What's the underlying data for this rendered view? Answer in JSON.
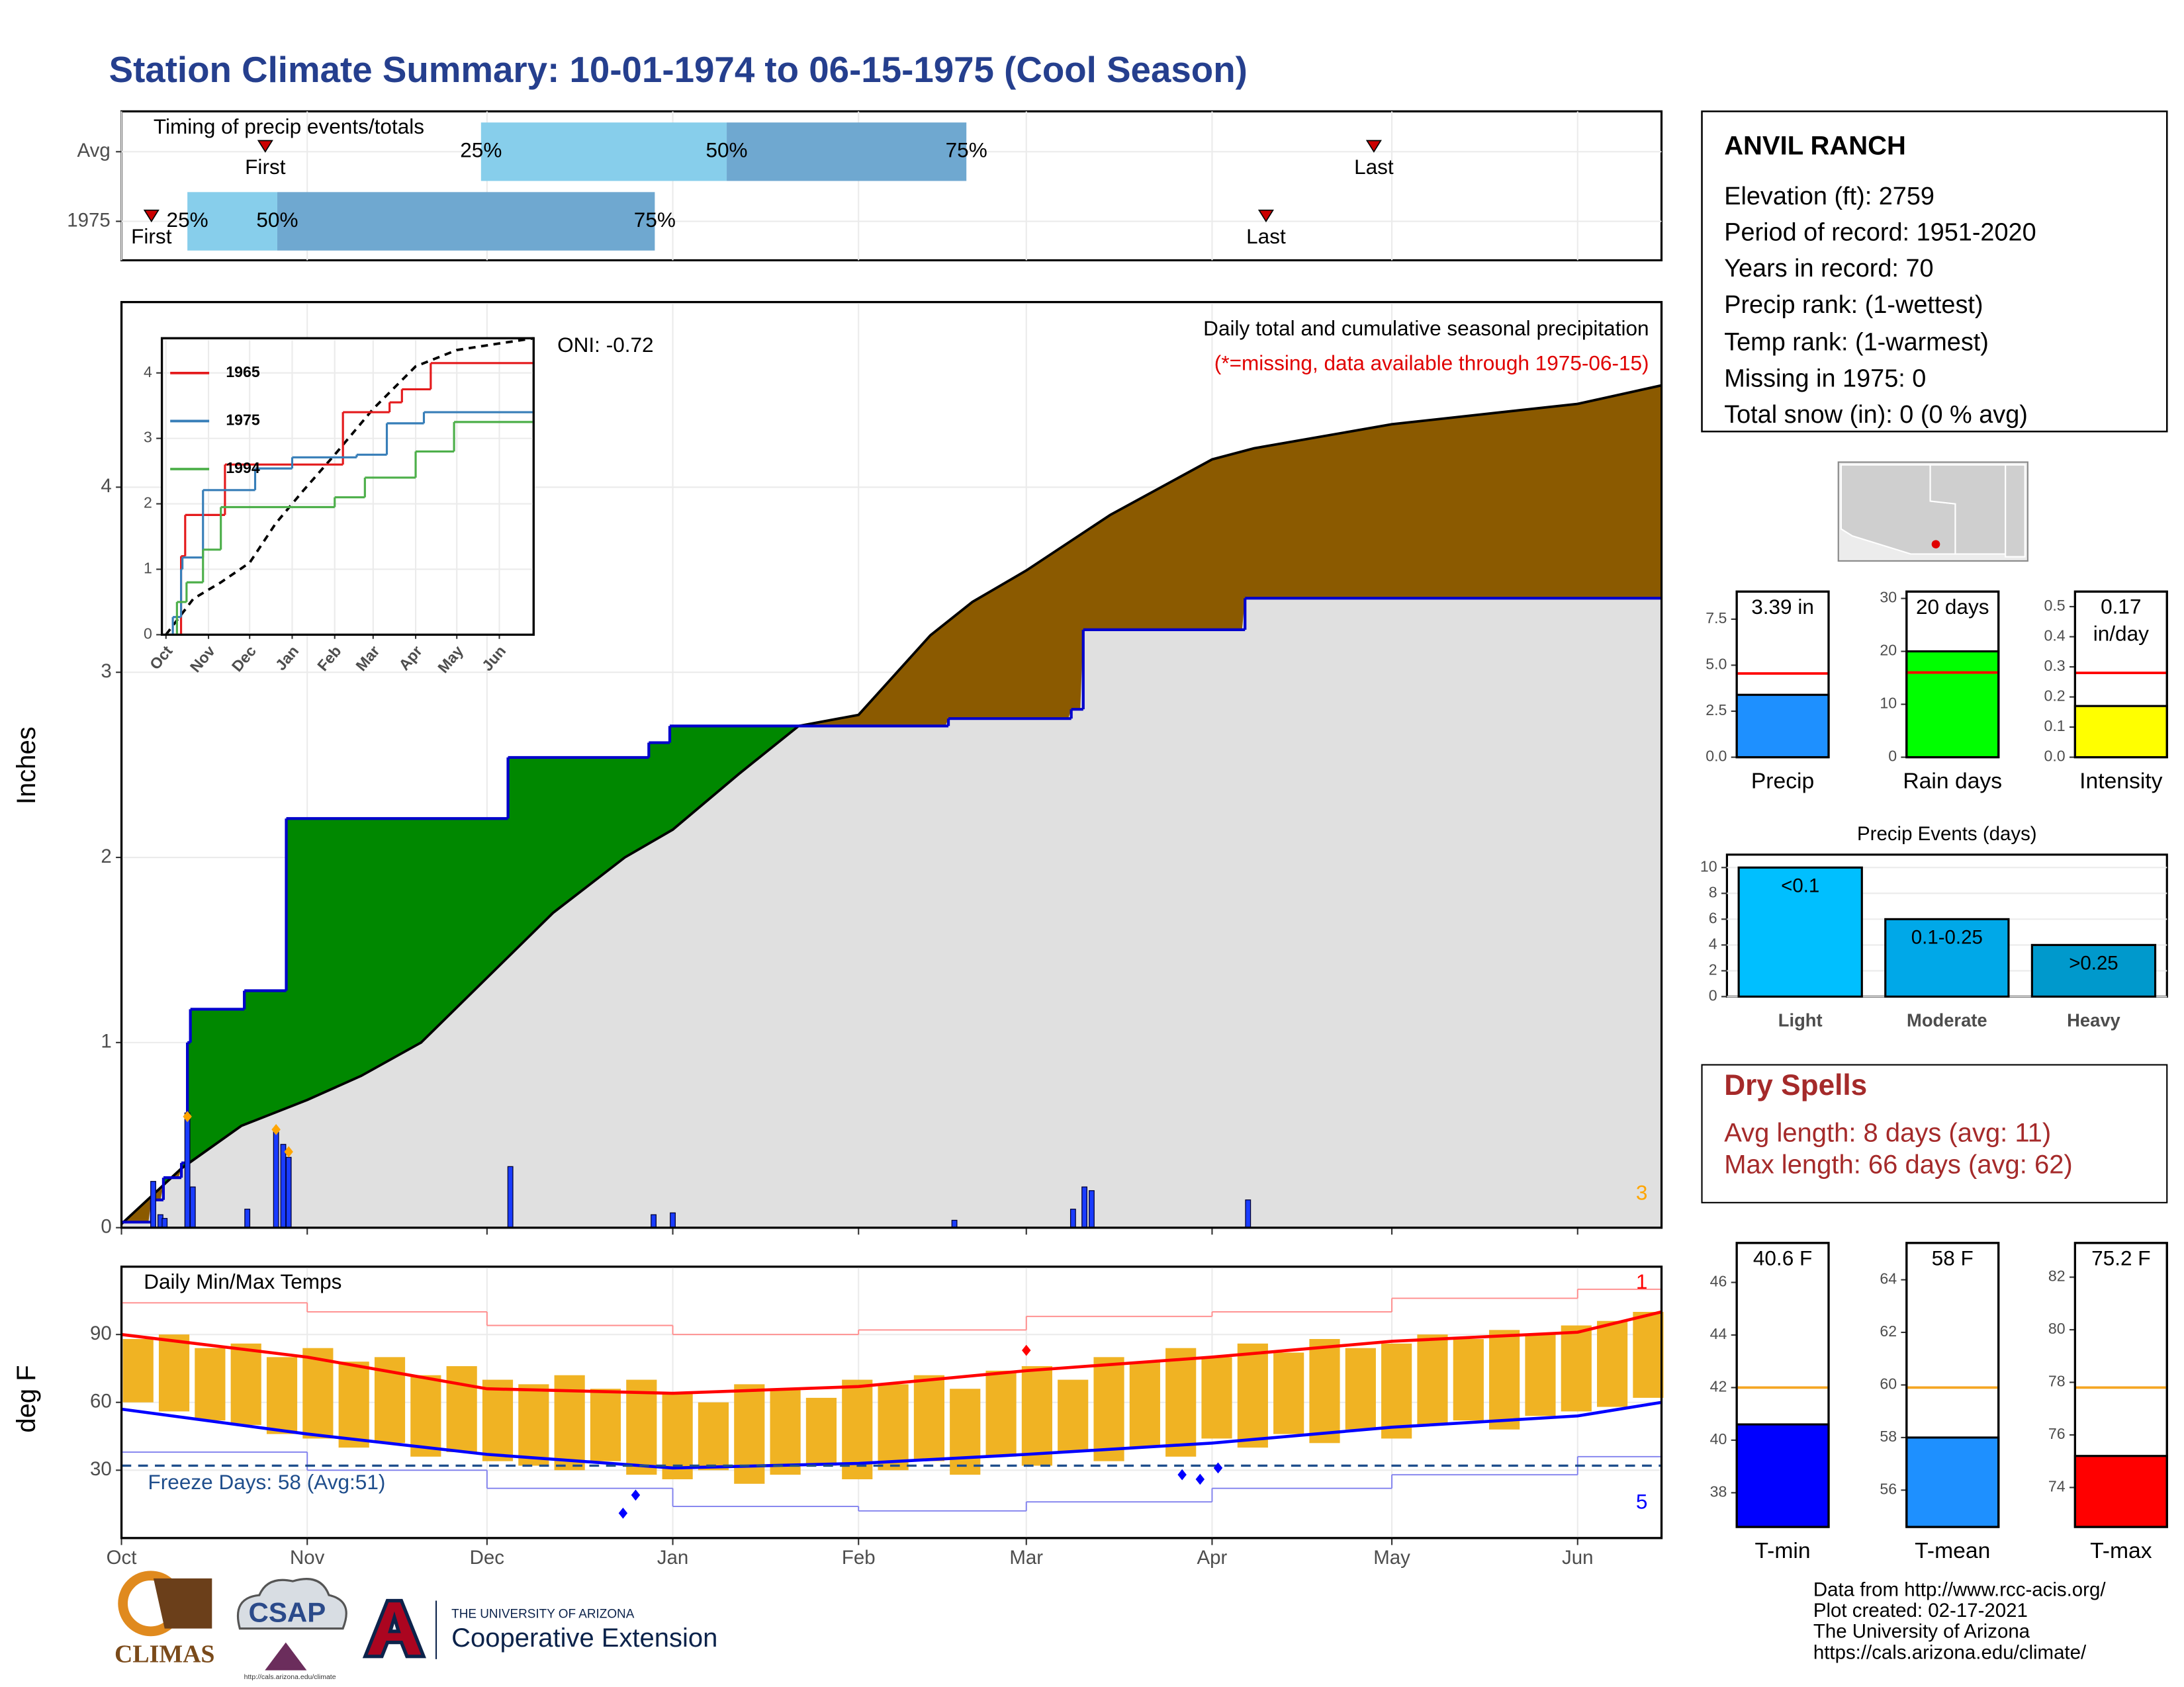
{
  "header": {
    "title": "Station Climate Summary: 10-01-1974 to 06-15-1975 (Cool Season)"
  },
  "station": {
    "name": "ANVIL RANCH",
    "lines": [
      "Elevation (ft): 2759",
      "Period of record: 1951-2020",
      "Years in record: 70",
      "Precip rank:  (1-wettest)",
      "Temp rank:  (1-warmest)",
      "Missing in 1975: 0",
      "Total snow (in): 0 (0 % avg)"
    ]
  },
  "dry_spells": {
    "title": "Dry Spells",
    "lines": [
      "Avg length: 8 days (avg: 11)",
      "Max length: 66 days (avg: 62)"
    ]
  },
  "footer": {
    "lines": [
      "Data from http://www.rcc-acis.org/",
      "Plot created: 02-17-2021",
      "The University of Arizona",
      "https://cals.arizona.edu/climate/"
    ]
  },
  "logos": {
    "climas": "CLIMAS",
    "csap": "CSAP",
    "csap_url": "http://cals.arizona.edu/climate",
    "university": "THE UNIVERSITY OF ARIZONA",
    "extension": "Cooperative Extension"
  },
  "chart_data": [
    {
      "type": "timing",
      "title": "Timing of precip events/totals",
      "categories": [
        "Avg",
        "1975"
      ],
      "labels": [
        "First",
        "25%",
        "50%",
        "75%",
        "Last"
      ],
      "rows": [
        [
          24,
          60,
          101,
          141,
          209
        ],
        [
          5,
          11,
          26,
          89,
          191
        ]
      ],
      "xlim": [
        0,
        257
      ],
      "xgrid": [
        0,
        31,
        61,
        92,
        123,
        151,
        182,
        212,
        243
      ],
      "colors": [
        "#87ceeb",
        "#6fa8d0"
      ],
      "marker_color": "#cc0000"
    },
    {
      "type": "cumulative",
      "ylabel": "Inches",
      "title": "Daily total and cumulative seasonal precipitation",
      "subtitle": "(*=missing, data available through 1975-06-15)",
      "annotation": "ONI: -0.72",
      "corner_note": "3",
      "corner_note_color": "#ffa500",
      "xlim": [
        0,
        257
      ],
      "xticks": [
        0,
        31,
        61,
        92,
        123,
        151,
        182,
        212,
        243
      ],
      "ylim": [
        0,
        5
      ],
      "yticks": [
        0,
        1,
        2,
        3,
        4
      ],
      "grid": true,
      "fill_colors": {
        "above": "#008800",
        "below": "#8b5a00",
        "base": "#e0e0e0"
      },
      "observed": {
        "x": [
          0,
          5,
          7,
          10,
          11,
          11.5,
          20.5,
          27.5,
          64.5,
          88,
          91.5,
          138,
          158.5,
          160.5,
          187.5
        ],
        "values": [
          0.03,
          0.15,
          0.27,
          0.35,
          1.0,
          1.18,
          1.28,
          2.21,
          2.54,
          2.62,
          2.71,
          2.75,
          2.8,
          3.23,
          3.4
        ],
        "color": "#0000cc"
      },
      "average": {
        "x": [
          0,
          10,
          20,
          31,
          40,
          50,
          61,
          72,
          84,
          92,
          103,
          113,
          123,
          135,
          142,
          151,
          165,
          182,
          189,
          212,
          243,
          257
        ],
        "values": [
          0.02,
          0.32,
          0.55,
          0.69,
          0.82,
          1.0,
          1.35,
          1.7,
          2.0,
          2.15,
          2.45,
          2.71,
          2.77,
          3.2,
          3.38,
          3.55,
          3.85,
          4.15,
          4.21,
          4.34,
          4.45,
          4.55
        ],
        "color": "#000000"
      },
      "daily": {
        "x": [
          5.3,
          6.5,
          7.2,
          11,
          11.9,
          21,
          25.8,
          27,
          27.9,
          64.9,
          88.8,
          92,
          139,
          158.8,
          160.7,
          161.9,
          188
        ],
        "values": [
          0.25,
          0.07,
          0.05,
          0.62,
          0.22,
          0.1,
          0.52,
          0.45,
          0.38,
          0.33,
          0.07,
          0.08,
          0.04,
          0.1,
          0.22,
          0.2,
          0.15
        ],
        "color": "#1a3cff"
      },
      "record_markers": {
        "x": [
          11,
          25.8,
          27.9
        ],
        "values": [
          0.6,
          0.53,
          0.41
        ],
        "color": "#ffa500"
      }
    },
    {
      "type": "inset",
      "xlim": [
        -3,
        268
      ],
      "xticks": [
        {
          "value": 0,
          "label": "Oct"
        },
        {
          "value": 31,
          "label": "Nov"
        },
        {
          "value": 61,
          "label": "Dec"
        },
        {
          "value": 92,
          "label": "Jan"
        },
        {
          "value": 123,
          "label": "Feb"
        },
        {
          "value": 151,
          "label": "Mar"
        },
        {
          "value": 182,
          "label": "Apr"
        },
        {
          "value": 212,
          "label": "May"
        },
        {
          "value": 243,
          "label": "Jun"
        }
      ],
      "ylim": [
        0,
        4.53
      ],
      "yticks": [
        0,
        1,
        2,
        3,
        4
      ],
      "grid": true,
      "legend": "top-left",
      "series": [
        {
          "name": "1965",
          "color": "#e41a1c",
          "x": [
            0,
            11,
            14,
            43,
            129,
            163,
            172,
            193
          ],
          "values": [
            0,
            1.2,
            1.83,
            2.6,
            3.4,
            3.55,
            3.75,
            4.15
          ]
        },
        {
          "name": "1975",
          "color": "#377eb8",
          "x": [
            0,
            5,
            11,
            12,
            27,
            65,
            92,
            139,
            161,
            188
          ],
          "values": [
            0,
            0.27,
            1.0,
            1.18,
            2.21,
            2.54,
            2.71,
            2.75,
            3.23,
            3.4
          ]
        },
        {
          "name": "1994",
          "color": "#4daf4a",
          "x": [
            0,
            8,
            15,
            27,
            40,
            123,
            145,
            182,
            210
          ],
          "values": [
            0,
            0.5,
            0.8,
            1.3,
            1.95,
            2.1,
            2.4,
            2.8,
            3.25
          ]
        }
      ],
      "average": {
        "x": [
          0,
          20,
          40,
          61,
          80,
          100,
          123,
          151,
          182,
          212,
          243,
          268
        ],
        "values": [
          0,
          0.55,
          0.8,
          1.1,
          1.7,
          2.2,
          2.75,
          3.45,
          4.1,
          4.35,
          4.45,
          4.53
        ],
        "color": "#000000"
      }
    },
    {
      "type": "temperature",
      "title": "Daily Min/Max Temps",
      "ylabel": "deg F",
      "xlim": [
        0,
        257
      ],
      "xticks": [
        {
          "value": 0,
          "label": "Oct"
        },
        {
          "value": 31,
          "label": "Nov"
        },
        {
          "value": 61,
          "label": "Dec"
        },
        {
          "value": 92,
          "label": "Jan"
        },
        {
          "value": 123,
          "label": "Feb"
        },
        {
          "value": 151,
          "label": "Mar"
        },
        {
          "value": 182,
          "label": "Apr"
        },
        {
          "value": 212,
          "label": "May"
        },
        {
          "value": 243,
          "label": "Jun"
        }
      ],
      "ylim": [
        0,
        120
      ],
      "yticks": [
        30,
        60,
        90
      ],
      "grid": true,
      "bars": {
        "x": [
          0,
          6,
          12,
          18,
          24,
          30,
          36,
          42,
          48,
          54,
          60,
          66,
          72,
          78,
          84,
          90,
          96,
          102,
          108,
          114,
          120,
          126,
          132,
          138,
          144,
          150,
          156,
          162,
          168,
          174,
          180,
          186,
          192,
          198,
          204,
          210,
          216,
          222,
          228,
          234,
          240,
          246,
          252
        ],
        "max": [
          88,
          90,
          84,
          86,
          80,
          84,
          78,
          80,
          72,
          76,
          70,
          68,
          72,
          66,
          70,
          64,
          60,
          68,
          66,
          62,
          70,
          68,
          72,
          66,
          74,
          76,
          70,
          80,
          78,
          84,
          80,
          86,
          82,
          88,
          84,
          86,
          90,
          88,
          92,
          90,
          94,
          96,
          100
        ],
        "min": [
          60,
          56,
          52,
          50,
          46,
          44,
          40,
          42,
          36,
          38,
          34,
          32,
          30,
          34,
          28,
          26,
          30,
          24,
          28,
          32,
          26,
          30,
          34,
          28,
          36,
          32,
          38,
          34,
          40,
          36,
          44,
          40,
          46,
          42,
          48,
          44,
          50,
          52,
          48,
          54,
          56,
          58,
          62
        ],
        "color": "#f0b323"
      },
      "avg_max": {
        "x": [
          0,
          31,
          61,
          92,
          123,
          151,
          182,
          212,
          243,
          257
        ],
        "values": [
          90,
          80,
          66,
          64,
          67,
          74,
          80,
          87,
          91,
          100
        ],
        "color": "#ff0000"
      },
      "avg_min": {
        "x": [
          0,
          31,
          61,
          92,
          123,
          151,
          182,
          212,
          243,
          257
        ],
        "values": [
          57,
          46,
          37,
          31,
          33,
          37,
          42,
          49,
          54,
          60
        ],
        "color": "#0000ff"
      },
      "record_high": {
        "x": [
          0,
          31,
          61,
          92,
          123,
          151,
          182,
          212,
          243
        ],
        "values": [
          104,
          100,
          94,
          90,
          92,
          98,
          100,
          106,
          110
        ],
        "color": "#ff8c8c"
      },
      "record_low": {
        "x": [
          0,
          31,
          61,
          92,
          123,
          151,
          182,
          212,
          243
        ],
        "values": [
          38,
          30,
          22,
          14,
          12,
          16,
          22,
          28,
          36
        ],
        "color": "#8080ee"
      },
      "freeze_line": 32,
      "freeze_label": "Freeze Days: 58 (Avg:51)",
      "freeze_color": "#1f4e8c",
      "high_markers": {
        "x": [
          151
        ],
        "values": [
          83
        ],
        "color": "#ff0000"
      },
      "low_markers": {
        "x": [
          83.7,
          85.8,
          177,
          180,
          183
        ],
        "values": [
          11,
          19,
          28,
          26,
          31
        ],
        "color": "#0000ff"
      },
      "notes": [
        {
          "text": "1",
          "color": "#ff0000"
        },
        {
          "text": "5",
          "color": "#0000ff"
        }
      ]
    },
    {
      "type": "summary_bar",
      "categories": [
        "Precip"
      ],
      "values": [
        3.39
      ],
      "value_labels": [
        "3.39 in"
      ],
      "color": "#1e90ff",
      "avg": 4.55,
      "avg_color": "#ff0000",
      "ylim": [
        0,
        9
      ],
      "yticks": [
        {
          "value": 0,
          "label": "0.0"
        },
        2.5,
        {
          "value": 5,
          "label": "5.0"
        },
        7.5
      ]
    },
    {
      "type": "summary_bar",
      "categories": [
        "Rain days"
      ],
      "values": [
        20
      ],
      "value_labels": [
        "20 days"
      ],
      "color": "#00ff00",
      "avg": 16,
      "avg_color": "#ff0000",
      "ylim": [
        0,
        31.3
      ],
      "yticks": [
        0,
        10,
        20,
        30
      ]
    },
    {
      "type": "summary_bar",
      "categories": [
        "Intensity"
      ],
      "values": [
        0.17
      ],
      "value_labels": [
        "0.17\nin/day"
      ],
      "color": "#ffff00",
      "avg": 0.28,
      "avg_color": "#ff0000",
      "ylim": [
        0,
        0.55
      ],
      "yticks": [
        {
          "value": 0,
          "label": "0.0"
        },
        0.1,
        0.2,
        0.3,
        0.4,
        0.5
      ]
    },
    {
      "type": "event_bar",
      "title": "Precip Events (days)",
      "categories": [
        "Light",
        "Moderate",
        "Heavy"
      ],
      "values": [
        10,
        6,
        4
      ],
      "value_labels": [
        "<0.1",
        "0.1-0.25",
        ">0.25"
      ],
      "colors": [
        "#00bfff",
        "#00a8e8",
        "#0099cc"
      ],
      "ylim": [
        0,
        11
      ],
      "yticks": [
        0,
        2,
        4,
        6,
        8,
        10
      ],
      "grid": true
    },
    {
      "type": "summary_bar",
      "categories": [
        "T-min"
      ],
      "values": [
        40.6
      ],
      "value_labels": [
        "40.6 F"
      ],
      "color": "#0000ff",
      "avg": 42,
      "avg_color": "#f5a623",
      "ylim": [
        36.7,
        47.5
      ],
      "yticks": [
        38,
        40,
        42,
        44,
        46
      ]
    },
    {
      "type": "summary_bar",
      "categories": [
        "T-mean"
      ],
      "values": [
        58
      ],
      "value_labels": [
        "58 F"
      ],
      "color": "#1e90ff",
      "avg": 59.9,
      "avg_color": "#f5a623",
      "ylim": [
        54.6,
        65.4
      ],
      "yticks": [
        56,
        58,
        60,
        62,
        64
      ]
    },
    {
      "type": "summary_bar",
      "categories": [
        "T-max"
      ],
      "values": [
        75.2
      ],
      "value_labels": [
        "75.2 F"
      ],
      "color": "#ff0000",
      "avg": 77.8,
      "avg_color": "#f5a623",
      "ylim": [
        72.5,
        83.3
      ],
      "yticks": [
        74,
        76,
        78,
        80,
        82
      ]
    }
  ]
}
